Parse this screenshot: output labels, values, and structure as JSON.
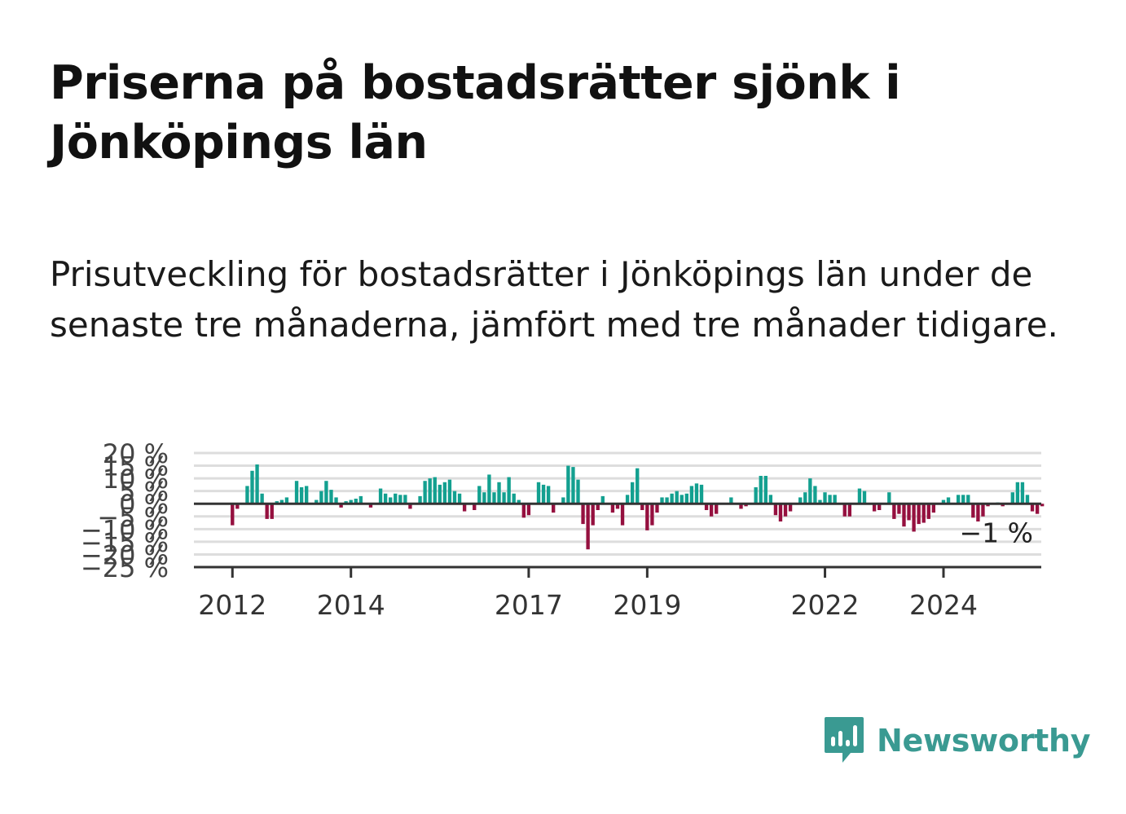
{
  "header": {
    "title": "Priserna på bostadsrätter sjönk i Jönköpings län",
    "subtitle": "Prisutveckling för bostadsrätter i Jönköpings län under de senaste tre månaderna, jämfört med tre månader tidigare."
  },
  "brand": {
    "name": "Newsworthy",
    "color": "#3a9a92",
    "icon": "newsworthy-logo-icon"
  },
  "colors": {
    "positive": "#13a090",
    "negative": "#95103f",
    "grid": "#dddddd",
    "zero": "#333333"
  },
  "chart_data": {
    "type": "bar",
    "title": "",
    "xlabel": "",
    "ylabel": "",
    "ylim": [
      -25,
      20
    ],
    "yticks": [
      20,
      15,
      10,
      5,
      0,
      -5,
      -10,
      -15,
      -20,
      -25
    ],
    "ytick_labels": [
      "20 %",
      "15 %",
      "10 %",
      "5 %",
      "0 %",
      "−5 %",
      "−10 %",
      "−15 %",
      "−20 %",
      "−25 %"
    ],
    "xticks": [
      2012,
      2014,
      2017,
      2019,
      2022,
      2024
    ],
    "xtick_labels": [
      "2012",
      "2014",
      "2017",
      "2019",
      "2022",
      "2024"
    ],
    "xlim": [
      2011.35,
      2025.65
    ],
    "grid": true,
    "last_value_label": "−1 %",
    "x_start": 2012.0,
    "step": 0.08333,
    "values": [
      -8.5,
      -2,
      0,
      7,
      13,
      15.5,
      4,
      -6,
      -6,
      1,
      1.5,
      2.5,
      0,
      9,
      6.5,
      7,
      0,
      1.5,
      5,
      9,
      5.5,
      2.5,
      -1.5,
      1,
      1.5,
      2,
      3,
      0,
      -1.5,
      0,
      6,
      4,
      2.5,
      4,
      3.5,
      3.5,
      -2,
      0,
      3,
      9,
      10,
      10.5,
      7.5,
      8.5,
      9.5,
      5,
      4,
      -3,
      0,
      -2.5,
      7,
      4.5,
      11.5,
      4.5,
      8.5,
      4.5,
      10.5,
      4,
      1.5,
      -5.5,
      -4.5,
      0,
      8.5,
      7.5,
      7,
      -3.5,
      0,
      2.5,
      15,
      14.5,
      9.5,
      -8,
      -18,
      -8.5,
      -2.5,
      3,
      0,
      -3.5,
      -2,
      -8.5,
      3.5,
      8.5,
      14,
      -2.5,
      -10.5,
      -8.5,
      -3.5,
      2.5,
      2.5,
      4,
      5,
      3.5,
      4,
      7,
      8,
      7.5,
      -2.5,
      -5,
      -4,
      0,
      0,
      2.5,
      0,
      -2,
      -1,
      0,
      6.5,
      11,
      11,
      3.5,
      -4.5,
      -7,
      -5,
      -3,
      0,
      2.5,
      4.5,
      10,
      7,
      1.5,
      4.5,
      3.5,
      3.5,
      0,
      -5,
      -5,
      0,
      6,
      5,
      0,
      -3,
      -2.5,
      0,
      4.5,
      -6,
      -4,
      -9,
      -6.5,
      -11,
      -8,
      -7.5,
      -6,
      -3.5,
      0,
      1.5,
      2.5,
      0,
      3.5,
      3.5,
      3.5,
      -5.5,
      -7,
      -5,
      -1,
      0,
      0.5,
      -1,
      0,
      4.5,
      8.5,
      8.5,
      3.5,
      -3,
      -4,
      -1
    ]
  }
}
